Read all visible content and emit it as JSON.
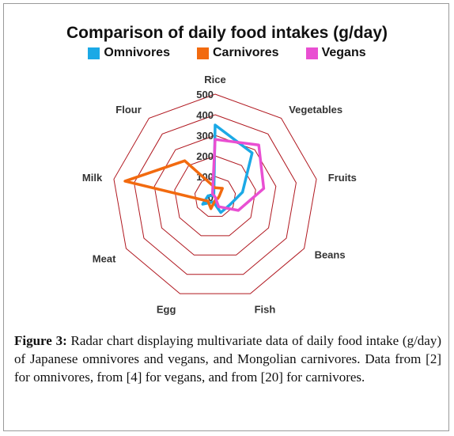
{
  "chart_data": {
    "type": "radar",
    "title": "Comparison of daily food intakes (g/day)",
    "axes": [
      "Rice",
      "Vegetables",
      "Fruits",
      "Beans",
      "Fish",
      "Egg",
      "Meat",
      "Milk",
      "Flour"
    ],
    "rlim": [
      0,
      500
    ],
    "ticks": [
      "0",
      "100",
      "200",
      "300",
      "400",
      "500"
    ],
    "grid": true,
    "legend_position": "top",
    "series": [
      {
        "name": "Omnivores",
        "color": "#1BA9E6",
        "values": [
          350,
          280,
          135,
          80,
          80,
          25,
          70,
          35,
          10
        ]
      },
      {
        "name": "Carnivores",
        "color": "#F26A0F",
        "values": [
          45,
          55,
          20,
          15,
          10,
          60,
          40,
          445,
          230
        ]
      },
      {
        "name": "Vegans",
        "color": "#E94FD2",
        "values": [
          280,
          330,
          240,
          130,
          50,
          0,
          0,
          0,
          20
        ]
      }
    ],
    "grid_color": "#B0171F"
  },
  "caption": {
    "label": "Figure 3:",
    "text": " Radar chart displaying multivariate data of daily food intake (g/day) of Japanese omnivores and vegans, and Mongolian carnivores. Data from [2] for omnivores, from [4] for vegans, and from [20] for carnivores."
  }
}
